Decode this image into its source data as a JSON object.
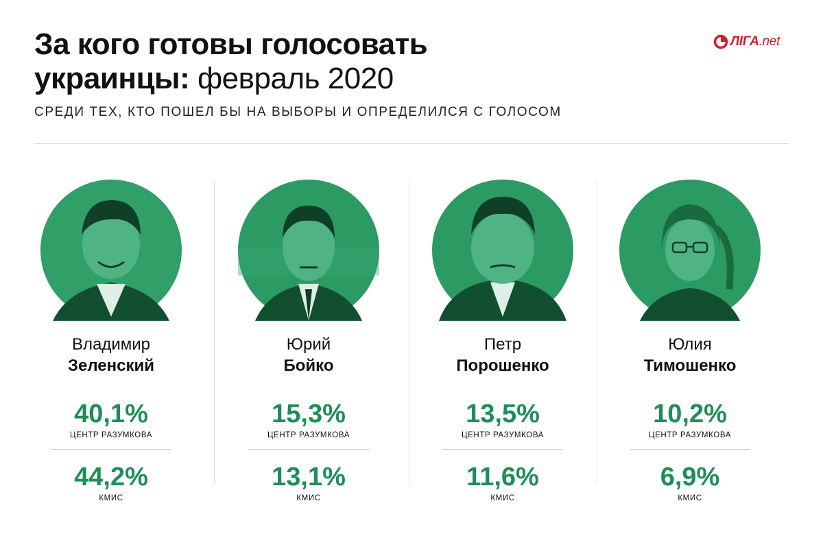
{
  "header": {
    "title_line1": "За кого готовы голосовать",
    "title_line2_bold": "украинцы:",
    "title_line2_light": "февраль 2020",
    "subtitle": "СРЕДИ ТЕХ, КТО ПОШЕЛ БЫ НА ВЫБОРЫ И ОПРЕДЕЛИЛСЯ С ГОЛОСОМ"
  },
  "logo": {
    "brand": "ЛІГА",
    "suffix": ".net",
    "color": "#d8182b"
  },
  "colors": {
    "accent": "#1e8e57",
    "photo_tint": "#2c9a63",
    "photo_dark": "#0f4e2e",
    "rule": "#dddddd"
  },
  "candidates": [
    {
      "first_name": "Владимир",
      "last_name": "Зеленский",
      "pct_razumkov": "40,1%",
      "src_razumkov": "ЦЕНТР РАЗУМКОВА",
      "pct_kmis": "44,2%",
      "src_kmis": "КМИС",
      "photo": "portrait-icon"
    },
    {
      "first_name": "Юрий",
      "last_name": "Бойко",
      "pct_razumkov": "15,3%",
      "src_razumkov": "ЦЕНТР РАЗУМКОВА",
      "pct_kmis": "13,1%",
      "src_kmis": "КМИС",
      "photo": "portrait-icon"
    },
    {
      "first_name": "Петр",
      "last_name": "Порошенко",
      "pct_razumkov": "13,5%",
      "src_razumkov": "ЦЕНТР РАЗУМКОВА",
      "pct_kmis": "11,6%",
      "src_kmis": "КМИС",
      "photo": "portrait-icon"
    },
    {
      "first_name": "Юлия",
      "last_name": "Тимошенко",
      "pct_razumkov": "10,2%",
      "src_razumkov": "ЦЕНТР РАЗУМКОВА",
      "pct_kmis": "6,9%",
      "src_kmis": "КМИС",
      "photo": "portrait-icon"
    }
  ]
}
